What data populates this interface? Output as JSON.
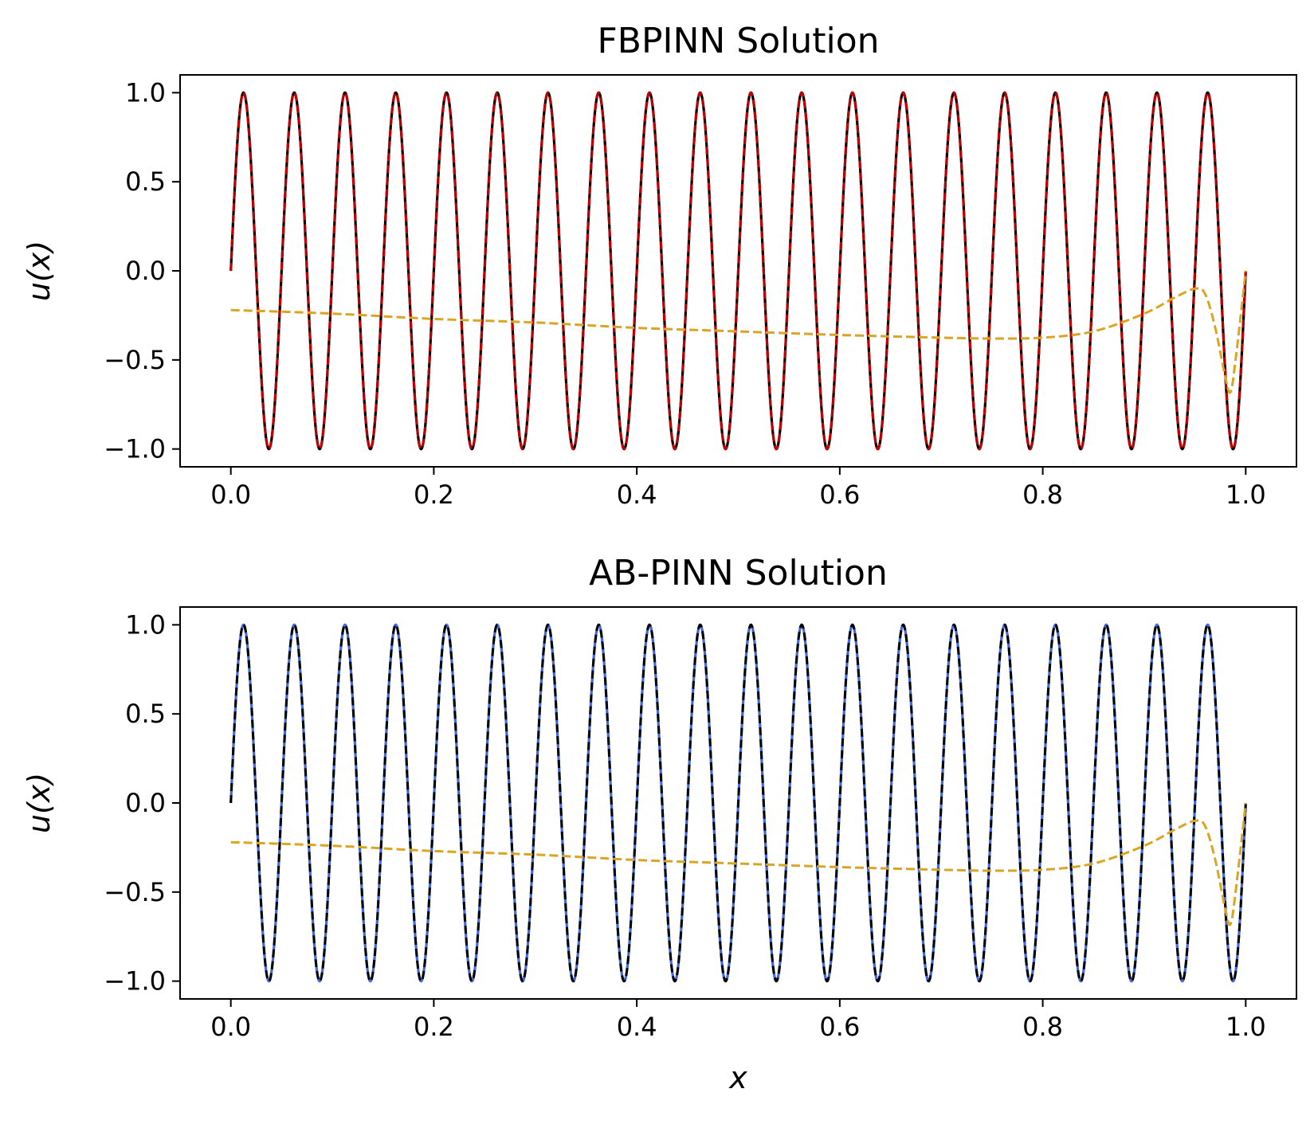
{
  "chart_data": [
    {
      "type": "line",
      "title": "FBPINN Solution",
      "xlabel": "",
      "ylabel": "u(x)",
      "xlim": [
        -0.05,
        1.05
      ],
      "ylim": [
        -1.1,
        1.1
      ],
      "xticks": [
        "0.0",
        "0.2",
        "0.4",
        "0.6",
        "0.8",
        "1.0"
      ],
      "yticks": [
        "1.0",
        "0.5",
        "0.0",
        "−0.5",
        "−1.0"
      ],
      "grid": false,
      "series": [
        {
          "kind": "exact",
          "function": "sin(2*pi*20*x)",
          "frequency": 20,
          "amplitude": 1.0,
          "x_range": [
            0,
            1
          ],
          "color": "#000000",
          "style": "solid"
        },
        {
          "kind": "solution",
          "function": "sin(2*pi*20*x)",
          "frequency": 20,
          "amplitude": 1.0,
          "x_range": [
            0,
            1
          ],
          "color": "#c00000",
          "style": "dashed"
        },
        {
          "kind": "ansatz",
          "color": "#DAA520",
          "style": "dashed",
          "x": [
            0.0,
            0.1,
            0.2,
            0.3,
            0.4,
            0.5,
            0.6,
            0.7,
            0.75,
            0.8,
            0.85,
            0.9,
            0.93,
            0.95,
            0.96,
            0.97,
            0.98,
            0.985,
            0.99,
            1.0
          ],
          "y": [
            -0.22,
            -0.24,
            -0.27,
            -0.29,
            -0.32,
            -0.34,
            -0.36,
            -0.375,
            -0.38,
            -0.375,
            -0.34,
            -0.24,
            -0.15,
            -0.1,
            -0.13,
            -0.32,
            -0.6,
            -0.68,
            -0.5,
            0.0
          ]
        }
      ]
    },
    {
      "type": "line",
      "title": "AB-PINN Solution",
      "xlabel": "x",
      "ylabel": "u(x)",
      "xlim": [
        -0.05,
        1.05
      ],
      "ylim": [
        -1.1,
        1.1
      ],
      "xticks": [
        "0.0",
        "0.2",
        "0.4",
        "0.6",
        "0.8",
        "1.0"
      ],
      "yticks": [
        "1.0",
        "0.5",
        "0.0",
        "−0.5",
        "−1.0"
      ],
      "grid": false,
      "series": [
        {
          "kind": "solution",
          "function": "sin(2*pi*20*x)",
          "frequency": 20,
          "amplitude": 1.0,
          "x_range": [
            0,
            1
          ],
          "color": "#4169E1",
          "style": "solid"
        },
        {
          "kind": "exact",
          "function": "sin(2*pi*20*x)",
          "frequency": 20,
          "amplitude": 1.0,
          "x_range": [
            0,
            1
          ],
          "color": "#000000",
          "style": "dashed"
        },
        {
          "kind": "ansatz",
          "color": "#DAA520",
          "style": "dashed",
          "x": [
            0.0,
            0.1,
            0.2,
            0.3,
            0.4,
            0.5,
            0.6,
            0.7,
            0.75,
            0.8,
            0.85,
            0.9,
            0.93,
            0.95,
            0.96,
            0.97,
            0.98,
            0.985,
            0.99,
            1.0
          ],
          "y": [
            -0.22,
            -0.24,
            -0.27,
            -0.29,
            -0.32,
            -0.34,
            -0.36,
            -0.375,
            -0.38,
            -0.375,
            -0.34,
            -0.24,
            -0.15,
            -0.1,
            -0.13,
            -0.32,
            -0.6,
            -0.68,
            -0.5,
            0.0
          ]
        }
      ]
    }
  ]
}
